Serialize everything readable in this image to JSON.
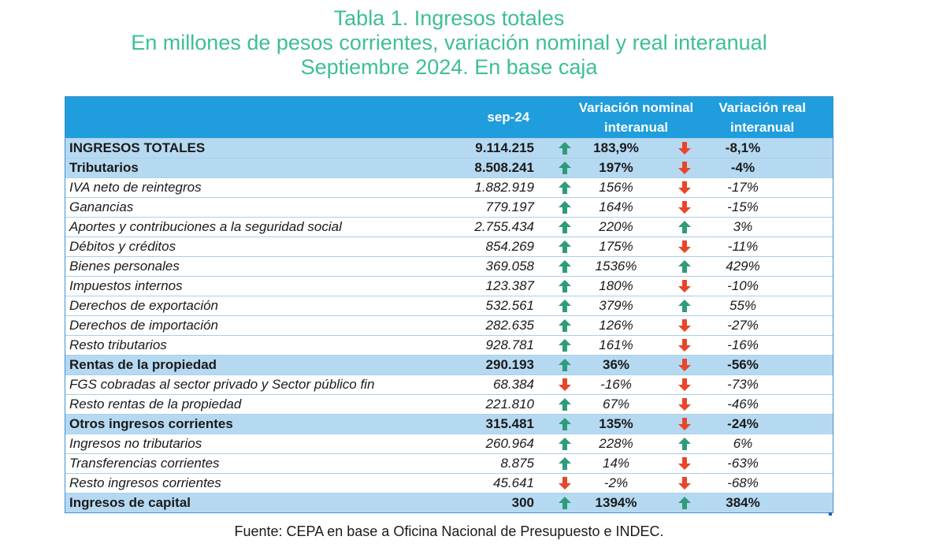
{
  "title": {
    "line1": "Tabla 1. Ingresos totales",
    "line2": "En millones de pesos corrientes, variación nominal y real interanual",
    "line3": "Septiembre 2024. En base caja"
  },
  "header": {
    "period": "sep-24",
    "nominal": "Variación nominal interanual",
    "real": "Variación real interanual"
  },
  "colors": {
    "up": "#2e9c7a",
    "down": "#e8462a",
    "header_bg": "#1f9ddc",
    "bold_row_bg": "#b6d9f2",
    "title": "#3dbf95"
  },
  "rows": [
    {
      "label": "INGRESOS TOTALES",
      "value": "9.114.215",
      "nom_dir": "up",
      "nom": "183,9%",
      "real_dir": "down",
      "real": "-8,1%",
      "style": "bold"
    },
    {
      "label": "Tributarios",
      "value": "8.508.241",
      "nom_dir": "up",
      "nom": "197%",
      "real_dir": "down",
      "real": "-4%",
      "style": "bold"
    },
    {
      "label": "IVA neto de reintegros",
      "value": "1.882.919",
      "nom_dir": "up",
      "nom": "156%",
      "real_dir": "down",
      "real": "-17%",
      "style": "italic"
    },
    {
      "label": "Ganancias",
      "value": "779.197",
      "nom_dir": "up",
      "nom": "164%",
      "real_dir": "down",
      "real": "-15%",
      "style": "italic"
    },
    {
      "label": "Aportes y contribuciones a la seguridad social",
      "value": "2.755.434",
      "nom_dir": "up",
      "nom": "220%",
      "real_dir": "up",
      "real": "3%",
      "style": "italic"
    },
    {
      "label": "Débitos y créditos",
      "value": "854.269",
      "nom_dir": "up",
      "nom": "175%",
      "real_dir": "down",
      "real": "-11%",
      "style": "italic"
    },
    {
      "label": "Bienes personales",
      "value": "369.058",
      "nom_dir": "up",
      "nom": "1536%",
      "real_dir": "up",
      "real": "429%",
      "style": "italic"
    },
    {
      "label": "Impuestos internos",
      "value": "123.387",
      "nom_dir": "up",
      "nom": "180%",
      "real_dir": "down",
      "real": "-10%",
      "style": "italic"
    },
    {
      "label": "Derechos de exportación",
      "value": "532.561",
      "nom_dir": "up",
      "nom": "379%",
      "real_dir": "up",
      "real": "55%",
      "style": "italic"
    },
    {
      "label": "Derechos de importación",
      "value": "282.635",
      "nom_dir": "up",
      "nom": "126%",
      "real_dir": "down",
      "real": "-27%",
      "style": "italic"
    },
    {
      "label": "Resto tributarios",
      "value": "928.781",
      "nom_dir": "up",
      "nom": "161%",
      "real_dir": "down",
      "real": "-16%",
      "style": "italic"
    },
    {
      "label": "Rentas de la propiedad",
      "value": "290.193",
      "nom_dir": "up",
      "nom": "36%",
      "real_dir": "down",
      "real": "-56%",
      "style": "bold"
    },
    {
      "label": "FGS cobradas al sector privado y Sector público fin",
      "value": "68.384",
      "nom_dir": "down",
      "nom": "-16%",
      "real_dir": "down",
      "real": "-73%",
      "style": "italic"
    },
    {
      "label": "Resto rentas de la propiedad",
      "value": "221.810",
      "nom_dir": "up",
      "nom": "67%",
      "real_dir": "down",
      "real": "-46%",
      "style": "italic"
    },
    {
      "label": "Otros ingresos corrientes",
      "value": "315.481",
      "nom_dir": "up",
      "nom": "135%",
      "real_dir": "down",
      "real": "-24%",
      "style": "bold"
    },
    {
      "label": "Ingresos no tributarios",
      "value": "260.964",
      "nom_dir": "up",
      "nom": "228%",
      "real_dir": "up",
      "real": "6%",
      "style": "italic"
    },
    {
      "label": "Transferencias corrientes",
      "value": "8.875",
      "nom_dir": "up",
      "nom": "14%",
      "real_dir": "down",
      "real": "-63%",
      "style": "italic"
    },
    {
      "label": "Resto ingresos corrientes",
      "value": "45.641",
      "nom_dir": "down",
      "nom": "-2%",
      "real_dir": "down",
      "real": "-68%",
      "style": "italic"
    },
    {
      "label": "Ingresos de capital",
      "value": "300",
      "nom_dir": "up",
      "nom": "1394%",
      "real_dir": "up",
      "real": "384%",
      "style": "bold"
    }
  ],
  "source": "Fuente: CEPA en base a Oficina Nacional de Presupuesto e INDEC."
}
